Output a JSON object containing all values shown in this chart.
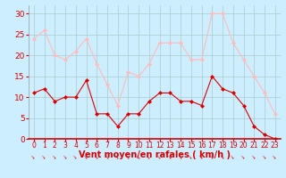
{
  "x": [
    0,
    1,
    2,
    3,
    4,
    5,
    6,
    7,
    8,
    9,
    10,
    11,
    12,
    13,
    14,
    15,
    16,
    17,
    18,
    19,
    20,
    21,
    22,
    23
  ],
  "wind_avg": [
    11,
    12,
    9,
    10,
    10,
    14,
    6,
    6,
    3,
    6,
    6,
    9,
    11,
    11,
    9,
    9,
    8,
    15,
    12,
    11,
    8,
    3,
    1,
    0
  ],
  "wind_gust": [
    24,
    26,
    20,
    19,
    21,
    24,
    18,
    13,
    8,
    16,
    15,
    18,
    23,
    23,
    23,
    19,
    19,
    30,
    30,
    23,
    19,
    15,
    11,
    6
  ],
  "bg_color": "#cceeff",
  "grid_color": "#aacccc",
  "avg_color": "#dd0000",
  "gust_color": "#ffbbbb",
  "markersize": 2.5,
  "xlabel": "Vent moyen/en rafales ( km/h )",
  "xlabel_color": "#dd0000",
  "xlabel_fontsize": 7,
  "tick_color": "#dd0000",
  "ytick_fontsize": 6.5,
  "xtick_fontsize": 5.5,
  "ylim": [
    0,
    32
  ],
  "yticks": [
    0,
    5,
    10,
    15,
    20,
    25,
    30
  ],
  "xlim": [
    -0.5,
    23.5
  ],
  "xticks": [
    0,
    1,
    2,
    3,
    4,
    5,
    6,
    7,
    8,
    9,
    10,
    11,
    12,
    13,
    14,
    15,
    16,
    17,
    18,
    19,
    20,
    21,
    22,
    23
  ]
}
